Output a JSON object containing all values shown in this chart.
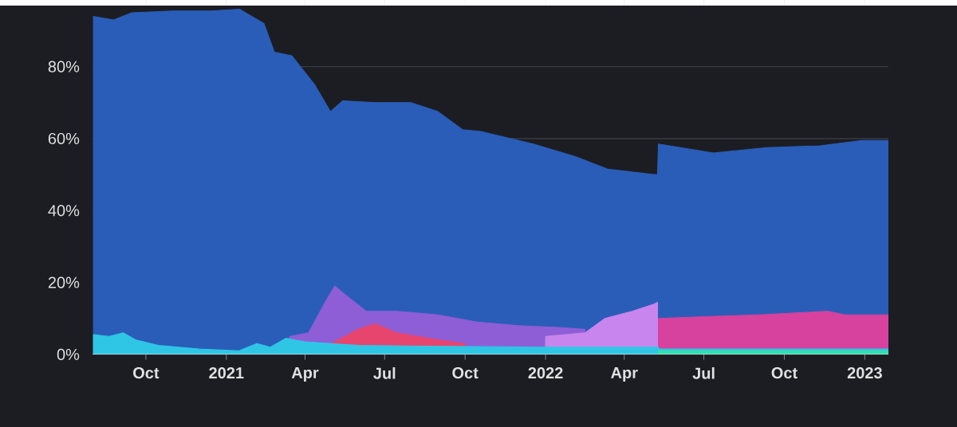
{
  "chart_data": {
    "type": "area",
    "xlim": [
      "2020-08-01",
      "2023-01-28"
    ],
    "xticks": [
      {
        "value": "2020-10-01",
        "label": "Oct"
      },
      {
        "value": "2021-01-01",
        "label": "2021"
      },
      {
        "value": "2021-04-01",
        "label": "Apr"
      },
      {
        "value": "2021-07-01",
        "label": "Jul"
      },
      {
        "value": "2021-10-01",
        "label": "Oct"
      },
      {
        "value": "2022-01-01",
        "label": "2022"
      },
      {
        "value": "2022-04-01",
        "label": "Apr"
      },
      {
        "value": "2022-07-01",
        "label": "Jul"
      },
      {
        "value": "2022-10-01",
        "label": "Oct"
      },
      {
        "value": "2023-01-01",
        "label": "2023"
      }
    ],
    "ylim": [
      0,
      97
    ],
    "yticks": [
      {
        "value": 0,
        "label": "0%"
      },
      {
        "value": 20,
        "label": "20%"
      },
      {
        "value": 40,
        "label": "40%"
      },
      {
        "value": 60,
        "label": "60%"
      },
      {
        "value": 80,
        "label": "80%"
      }
    ],
    "grid": "y",
    "series": [
      {
        "color": "#2a5db8",
        "x": [
          "2020-08-02",
          "2020-08-25",
          "2020-09-15",
          "2020-11-01",
          "2020-12-15",
          "2021-01-16",
          "2021-02-13",
          "2021-02-25",
          "2021-03-17",
          "2021-04-12",
          "2021-04-30",
          "2021-05-14",
          "2021-06-20",
          "2021-07-31",
          "2021-08-31",
          "2021-09-28",
          "2021-10-19",
          "2021-12-18",
          "2022-02-04",
          "2022-03-13",
          "2022-05-05",
          "2022-05-09",
          "2022-05-10",
          "2022-07-12",
          "2022-09-11",
          "2022-11-11",
          "2022-12-29",
          "2023-01-28"
        ],
        "values": [
          94,
          93,
          95,
          95.5,
          95.5,
          96,
          92,
          84,
          83,
          75,
          67.5,
          70.5,
          70,
          70,
          67.5,
          62.5,
          62,
          58.5,
          55,
          51.5,
          50,
          50,
          58.5,
          56,
          57.5,
          58,
          59.5,
          59.5
        ]
      },
      {
        "color": "#8e5ed6",
        "x": [
          "2021-03-01",
          "2021-03-15",
          "2021-04-05",
          "2021-04-25",
          "2021-05-05",
          "2021-05-20",
          "2021-06-10",
          "2021-07-15",
          "2021-08-31",
          "2021-10-15",
          "2021-12-01",
          "2022-01-15",
          "2022-02-15"
        ],
        "values": [
          0,
          5,
          6,
          15,
          19,
          16,
          12,
          12,
          11,
          9,
          8,
          7.5,
          7
        ]
      },
      {
        "color": "#c885ee",
        "x": [
          "2022-01-01",
          "2022-02-15",
          "2022-03-10",
          "2022-04-10",
          "2022-05-05",
          "2022-05-09"
        ],
        "values": [
          5,
          6,
          10,
          12,
          14,
          14.5
        ]
      },
      {
        "color": "#d6429e",
        "x": [
          "2022-05-10",
          "2022-07-01",
          "2022-09-01",
          "2022-11-20",
          "2022-12-10",
          "2023-01-28"
        ],
        "values": [
          10,
          10.5,
          11,
          12,
          11,
          11
        ]
      },
      {
        "color": "#e8456e",
        "x": [
          "2021-05-01",
          "2021-06-01",
          "2021-06-20",
          "2021-07-15",
          "2021-09-01",
          "2021-10-01"
        ],
        "values": [
          3,
          7,
          8.5,
          6,
          4,
          3
        ]
      },
      {
        "color": "#2fc6e6",
        "x": [
          "2020-08-02",
          "2020-08-20",
          "2020-09-05",
          "2020-09-20",
          "2020-10-15",
          "2020-12-01",
          "2021-01-15",
          "2021-02-05",
          "2021-02-20",
          "2021-03-10",
          "2021-04-01",
          "2021-06-01",
          "2022-01-01",
          "2022-05-10",
          "2022-05-11",
          "2023-01-28"
        ],
        "values": [
          5.5,
          5,
          6,
          4,
          2.5,
          1.5,
          1,
          3,
          2,
          4.5,
          3.5,
          2.5,
          2,
          2,
          1.5,
          1.5
        ]
      },
      {
        "color": "#2ee0b0",
        "x": [
          "2022-05-10",
          "2022-10-01",
          "2023-01-28"
        ],
        "values": [
          1,
          1,
          1
        ]
      }
    ]
  }
}
